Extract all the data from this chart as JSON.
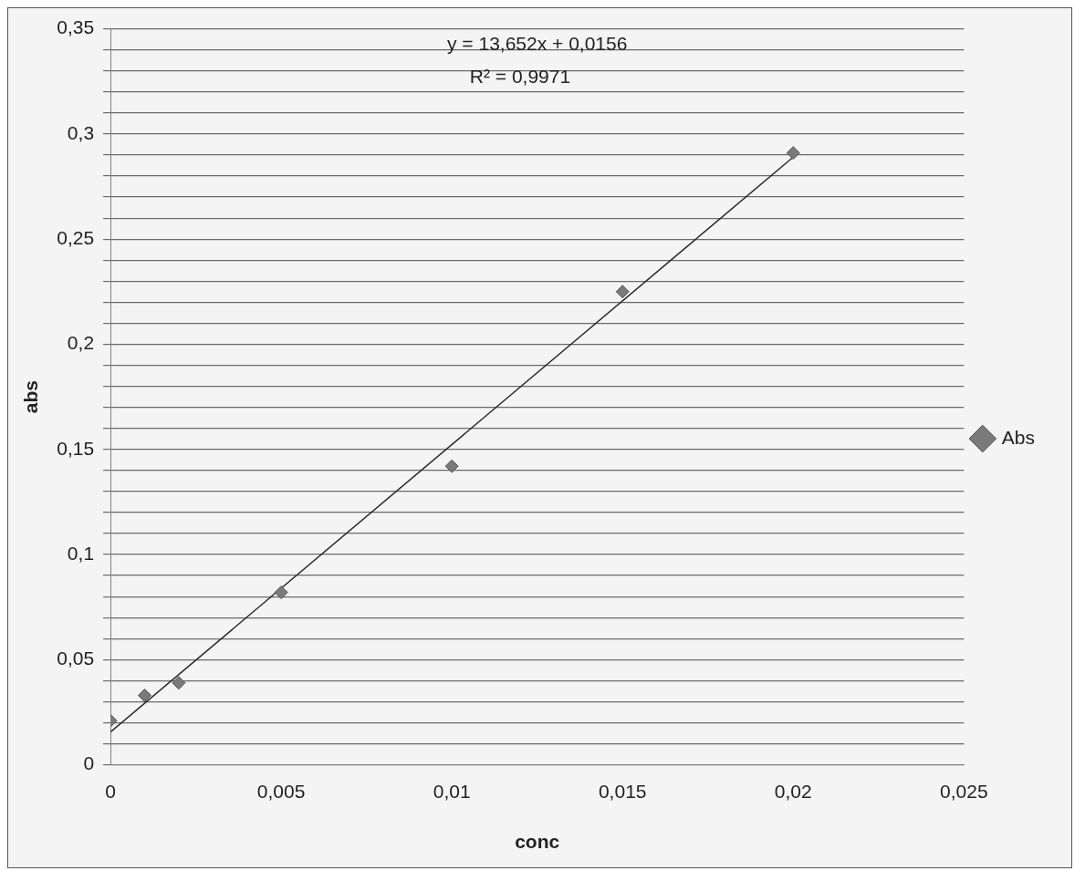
{
  "chart_data": {
    "type": "scatter",
    "xlabel": "conc",
    "ylabel": "abs",
    "xlim": [
      0,
      0.025
    ],
    "ylim": [
      0,
      0.35
    ],
    "xticks": [
      0,
      {
        "value": 0.005,
        "label": "0,005"
      },
      {
        "value": 0.01,
        "label": "0,01"
      },
      {
        "value": 0.015,
        "label": "0,015"
      },
      {
        "value": 0.02,
        "label": "0,02"
      },
      {
        "value": 0.025,
        "label": "0,025"
      }
    ],
    "yticks": [
      0,
      {
        "value": 0.01,
        "label": null
      },
      {
        "value": 0.02,
        "label": null
      },
      {
        "value": 0.03,
        "label": null
      },
      {
        "value": 0.04,
        "label": null
      },
      {
        "value": 0.05,
        "label": "0,05"
      },
      {
        "value": 0.06,
        "label": null
      },
      {
        "value": 0.07,
        "label": null
      },
      {
        "value": 0.08,
        "label": null
      },
      {
        "value": 0.09,
        "label": null
      },
      {
        "value": 0.1,
        "label": "0,1"
      },
      {
        "value": 0.11,
        "label": null
      },
      {
        "value": 0.12,
        "label": null
      },
      {
        "value": 0.13,
        "label": null
      },
      {
        "value": 0.14,
        "label": null
      },
      {
        "value": 0.15,
        "label": "0,15"
      },
      {
        "value": 0.16,
        "label": null
      },
      {
        "value": 0.17,
        "label": null
      },
      {
        "value": 0.18,
        "label": null
      },
      {
        "value": 0.19,
        "label": null
      },
      {
        "value": 0.2,
        "label": "0,2"
      },
      {
        "value": 0.21,
        "label": null
      },
      {
        "value": 0.22,
        "label": null
      },
      {
        "value": 0.23,
        "label": null
      },
      {
        "value": 0.24,
        "label": null
      },
      {
        "value": 0.25,
        "label": "0,25"
      },
      {
        "value": 0.26,
        "label": null
      },
      {
        "value": 0.27,
        "label": null
      },
      {
        "value": 0.28,
        "label": null
      },
      {
        "value": 0.29,
        "label": null
      },
      {
        "value": 0.3,
        "label": "0,3"
      },
      {
        "value": 0.31,
        "label": null
      },
      {
        "value": 0.32,
        "label": null
      },
      {
        "value": 0.33,
        "label": null
      },
      {
        "value": 0.34,
        "label": null
      },
      {
        "value": 0.35,
        "label": "0,35"
      }
    ],
    "grid": "y",
    "legend": "right",
    "marker": "diamond",
    "annotations": [
      "y = 13,652x + 0,0156",
      "R² = 0,9971"
    ],
    "series": [
      {
        "name": "Abs",
        "color": "#7a7a7a",
        "x": [
          0,
          0.001,
          0.002,
          0.005,
          0.01,
          0.015,
          0.02
        ],
        "values": [
          0.021,
          0.033,
          0.039,
          0.082,
          0.142,
          0.225,
          0.291
        ]
      },
      {
        "type": "line",
        "color": "#262626",
        "marker": "none",
        "x": [
          0,
          0.02
        ],
        "values": [
          0.0156,
          0.289
        ]
      }
    ]
  }
}
